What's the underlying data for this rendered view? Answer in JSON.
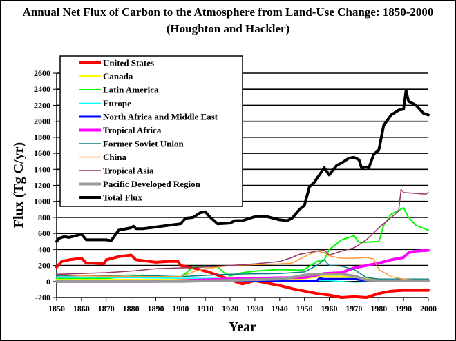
{
  "chart_data": {
    "type": "line",
    "title": "Annual Net Flux of Carbon to the Atmosphere from Land-Use Change: 1850-2000",
    "subtitle": "(Houghton and Hackler)",
    "xlabel": "Year",
    "ylabel": "Flux (Tg C/yr)",
    "xlim": [
      1850,
      2000
    ],
    "ylim": [
      -200,
      2600
    ],
    "xticks": [
      "1850",
      "1860",
      "1870",
      "1880",
      "1890",
      "1900",
      "1910",
      "1920",
      "1930",
      "1940",
      "1950",
      "1960",
      "1970",
      "1980",
      "1990",
      "2000"
    ],
    "yticks": [
      "2600",
      "2400",
      "2200",
      "2000",
      "1800",
      "1600",
      "1400",
      "1200",
      "1000",
      "800",
      "600",
      "400",
      "200",
      "0",
      "-200"
    ],
    "grid": "horizontal",
    "legend_position": "top-left",
    "series": [
      {
        "name": "United States",
        "color": "#ff0000",
        "width": 4,
        "x": [
          1850,
          1852,
          1855,
          1860,
          1862,
          1865,
          1869,
          1870,
          1875,
          1880,
          1882,
          1885,
          1890,
          1895,
          1899,
          1900,
          1905,
          1910,
          1915,
          1920,
          1925,
          1930,
          1935,
          1940,
          1945,
          1950,
          1955,
          1960,
          1965,
          1970,
          1975,
          1980,
          1985,
          1990,
          1995,
          2000
        ],
        "y": [
          180,
          250,
          270,
          290,
          230,
          230,
          220,
          270,
          310,
          330,
          270,
          260,
          240,
          250,
          250,
          200,
          170,
          130,
          80,
          20,
          -30,
          10,
          -20,
          -50,
          -90,
          -120,
          -150,
          -170,
          -200,
          -190,
          -200,
          -150,
          -120,
          -110,
          -110,
          -110
        ]
      },
      {
        "name": "Canada",
        "color": "#ffff00",
        "width": 3,
        "x": [
          1850,
          1870,
          1900,
          1920,
          1940,
          1950,
          1955,
          1960,
          1970,
          1975,
          1980,
          1990,
          2000
        ],
        "y": [
          20,
          20,
          20,
          20,
          25,
          40,
          60,
          60,
          55,
          30,
          25,
          10,
          5
        ]
      },
      {
        "name": "Latin America",
        "color": "#00ff00",
        "width": 2,
        "x": [
          1850,
          1870,
          1880,
          1885,
          1890,
          1900,
          1902,
          1905,
          1910,
          1915,
          1918,
          1920,
          1925,
          1930,
          1940,
          1948,
          1950,
          1955,
          1958,
          1960,
          1965,
          1970,
          1972,
          1975,
          1980,
          1982,
          1985,
          1990,
          1992,
          1995,
          2000
        ],
        "y": [
          40,
          40,
          60,
          80,
          50,
          60,
          100,
          180,
          190,
          180,
          100,
          70,
          110,
          130,
          150,
          140,
          150,
          250,
          270,
          400,
          520,
          570,
          490,
          490,
          500,
          700,
          840,
          920,
          800,
          700,
          640
        ]
      },
      {
        "name": "Europe",
        "color": "#00ffff",
        "width": 1.5,
        "x": [
          1850,
          1870,
          1900,
          1920,
          1940,
          1950,
          1960,
          1970,
          1980,
          2000
        ],
        "y": [
          50,
          50,
          40,
          40,
          20,
          15,
          10,
          -10,
          0,
          0
        ]
      },
      {
        "name": "North Africa and Middle East",
        "color": "#0000ff",
        "width": 3,
        "x": [
          1850,
          1900,
          1940,
          1955,
          1956,
          1958,
          1960,
          1970,
          1975,
          1980,
          2000
        ],
        "y": [
          10,
          10,
          10,
          10,
          40,
          30,
          30,
          30,
          10,
          5,
          20
        ]
      },
      {
        "name": "Tropical Africa",
        "color": "#ff00ff",
        "width": 4,
        "x": [
          1850,
          1880,
          1890,
          1930,
          1950,
          1955,
          1958,
          1965,
          1970,
          1975,
          1980,
          1985,
          1990,
          1992,
          1995,
          2000
        ],
        "y": [
          0,
          0,
          0,
          40,
          50,
          80,
          100,
          110,
          170,
          200,
          230,
          270,
          300,
          360,
          380,
          390
        ]
      },
      {
        "name": "Former Soviet Union",
        "color": "#008080",
        "width": 1.5,
        "x": [
          1850,
          1860,
          1880,
          1900,
          1920,
          1940,
          1950,
          1955,
          1958,
          1960,
          1965,
          1970,
          1975,
          1980,
          2000
        ],
        "y": [
          70,
          70,
          80,
          60,
          90,
          100,
          120,
          200,
          270,
          200,
          190,
          150,
          50,
          30,
          30
        ]
      },
      {
        "name": "China",
        "color": "#ff9933",
        "width": 1.5,
        "x": [
          1850,
          1860,
          1880,
          1900,
          1905,
          1910,
          1920,
          1930,
          1940,
          1945,
          1950,
          1955,
          1958,
          1960,
          1965,
          1970,
          1975,
          1978,
          1980,
          1985,
          1990,
          2000
        ],
        "y": [
          90,
          70,
          60,
          60,
          120,
          160,
          200,
          210,
          220,
          230,
          310,
          380,
          360,
          320,
          290,
          290,
          300,
          280,
          150,
          60,
          30,
          0
        ]
      },
      {
        "name": "Tropical Asia",
        "color": "#993366",
        "width": 1.5,
        "x": [
          1850,
          1860,
          1870,
          1880,
          1890,
          1900,
          1910,
          1920,
          1930,
          1940,
          1945,
          1948,
          1950,
          1955,
          1958,
          1960,
          1965,
          1970,
          1975,
          1980,
          1985,
          1988,
          1989,
          1990,
          1995,
          1999,
          2000
        ],
        "y": [
          90,
          100,
          110,
          130,
          160,
          170,
          180,
          200,
          220,
          250,
          300,
          340,
          350,
          380,
          390,
          330,
          380,
          420,
          520,
          670,
          800,
          880,
          1150,
          1110,
          1100,
          1090,
          1110
        ]
      },
      {
        "name": "Pacific Developed Region",
        "color": "#999999",
        "width": 4,
        "x": [
          1850,
          1870,
          1900,
          1940,
          1945,
          1950,
          1955,
          1960,
          1965,
          1970,
          1975,
          1980,
          1990,
          2000
        ],
        "y": [
          0,
          0,
          0,
          30,
          50,
          80,
          90,
          90,
          90,
          70,
          20,
          10,
          10,
          10
        ]
      },
      {
        "name": "Total Flux",
        "color": "#000000",
        "width": 4,
        "x": [
          1850,
          1851,
          1853,
          1855,
          1860,
          1862,
          1865,
          1870,
          1872,
          1875,
          1880,
          1881,
          1882,
          1885,
          1890,
          1895,
          1900,
          1902,
          1905,
          1908,
          1910,
          1912,
          1915,
          1920,
          1922,
          1925,
          1928,
          1930,
          1935,
          1940,
          1943,
          1945,
          1948,
          1950,
          1952,
          1954,
          1956,
          1958,
          1960,
          1962,
          1963,
          1965,
          1968,
          1970,
          1972,
          1973,
          1975,
          1976,
          1978,
          1980,
          1982,
          1985,
          1988,
          1990,
          1991,
          1992,
          1995,
          1998,
          2000
        ],
        "y": [
          500,
          540,
          560,
          550,
          590,
          520,
          520,
          520,
          510,
          640,
          670,
          690,
          660,
          660,
          680,
          700,
          720,
          790,
          800,
          860,
          870,
          800,
          720,
          730,
          760,
          760,
          790,
          810,
          810,
          770,
          760,
          790,
          900,
          950,
          1180,
          1240,
          1330,
          1420,
          1330,
          1410,
          1450,
          1480,
          1540,
          1550,
          1520,
          1420,
          1430,
          1420,
          1590,
          1640,
          1950,
          2080,
          2140,
          2150,
          2380,
          2250,
          2200,
          2100,
          2080
        ]
      }
    ]
  }
}
